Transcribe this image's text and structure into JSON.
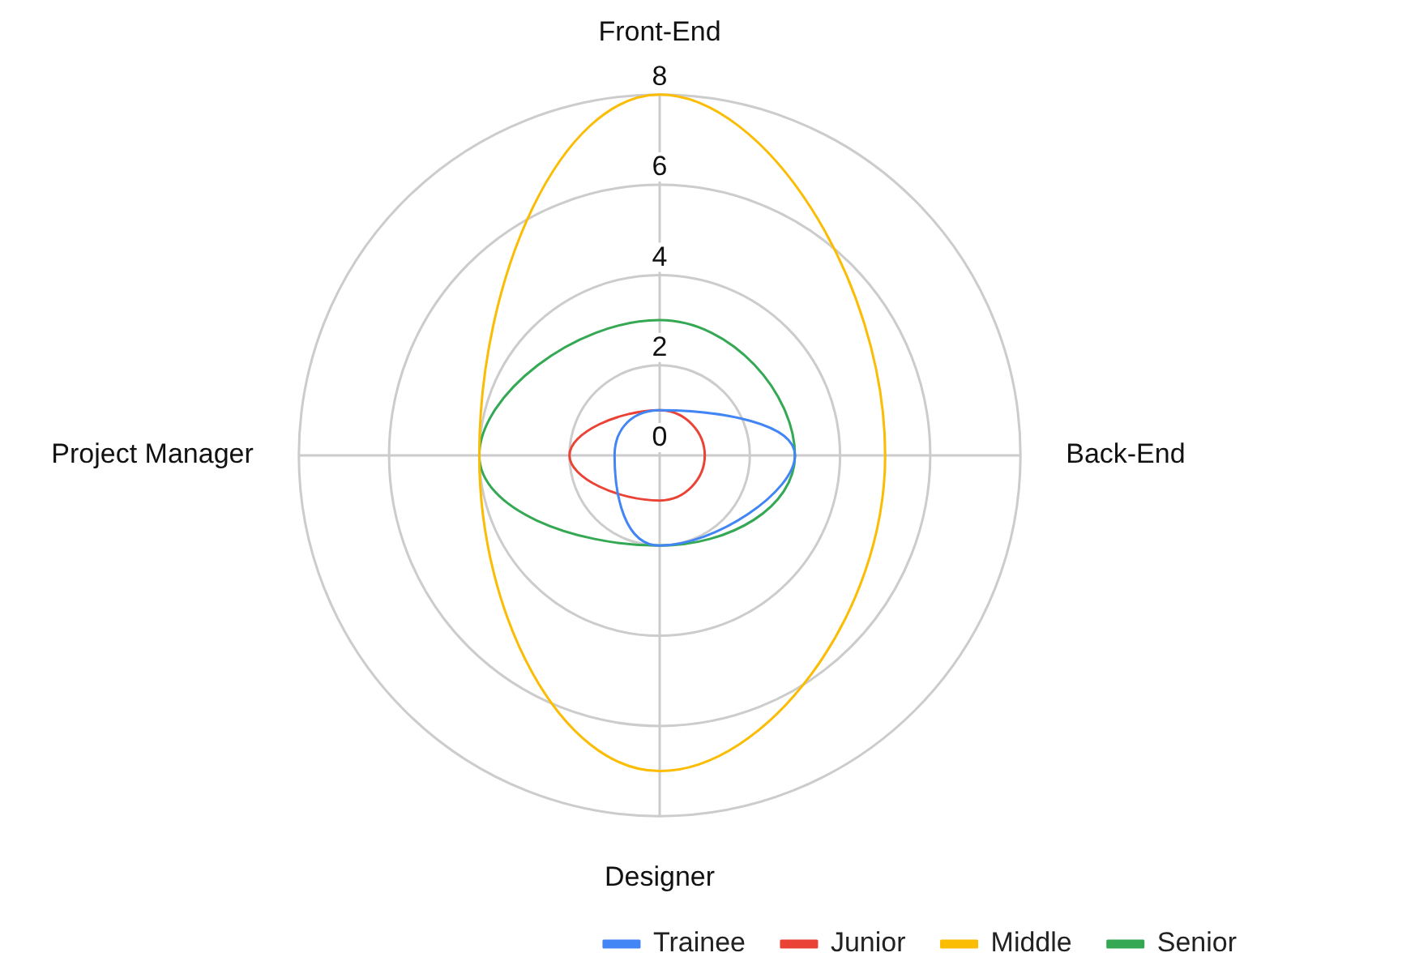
{
  "chart_data": {
    "type": "radar",
    "categories": [
      "Front-End",
      "Back-End",
      "Designer",
      "Project Manager"
    ],
    "series": [
      {
        "name": "Trainee",
        "color": "#4285f4",
        "values": [
          1,
          3,
          2,
          1
        ]
      },
      {
        "name": "Junior",
        "color": "#ea4335",
        "values": [
          1,
          1,
          1,
          2
        ]
      },
      {
        "name": "Middle",
        "color": "#fbbc04",
        "values": [
          8,
          5,
          7,
          4
        ]
      },
      {
        "name": "Senior",
        "color": "#34a853",
        "values": [
          3,
          3,
          2,
          4
        ]
      }
    ],
    "ylim": [
      0,
      8
    ],
    "yticks": [
      0,
      2,
      4,
      6,
      8
    ],
    "grid": true,
    "legend": "bottom right",
    "marker": "none",
    "line_style": "solid"
  }
}
